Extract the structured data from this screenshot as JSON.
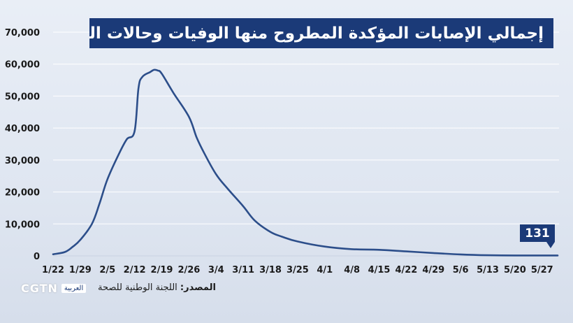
{
  "title": "إجمالي الإصابات المؤكدة المطروح منها الوفيات وحالات الشفاء",
  "end_label": "131",
  "source_label": "المصدر:",
  "source_value": "اللجنة الوطنية للصحة",
  "logo": {
    "text": "CGTN",
    "sub": "العربية"
  },
  "colors": {
    "line": "#2c4e8a",
    "badge": "#1b3a78",
    "grid": "#ffffff"
  },
  "chart_data": {
    "type": "line",
    "title": "إجمالي الإصابات المؤكدة المطروح منها الوفيات وحالات الشفاء",
    "xlabel": "",
    "ylabel": "",
    "ylim": [
      0,
      70000
    ],
    "yticks": [
      0,
      10000,
      20000,
      30000,
      40000,
      50000,
      60000,
      70000
    ],
    "ytick_labels": [
      "0",
      "10,000",
      "20,000",
      "30,000",
      "40,000",
      "50,000",
      "60,000",
      "70,000"
    ],
    "xticks": [
      "1/22",
      "1/29",
      "2/5",
      "2/12",
      "2/19",
      "2/26",
      "3/4",
      "3/11",
      "3/18",
      "3/25",
      "4/1",
      "4/8",
      "4/15",
      "4/22",
      "4/29",
      "5/6",
      "5/13",
      "5/20",
      "5/27"
    ],
    "grid": true,
    "series": [
      {
        "points": [
          [
            "1/22",
            500
          ],
          [
            "1/25",
            1200
          ],
          [
            "1/27",
            2800
          ],
          [
            "1/29",
            5000
          ],
          [
            "2/1",
            10000
          ],
          [
            "2/3",
            16500
          ],
          [
            "2/5",
            24000
          ],
          [
            "2/8",
            32000
          ],
          [
            "2/10",
            36500
          ],
          [
            "2/12",
            39000
          ],
          [
            "2/13",
            52500
          ],
          [
            "2/14",
            56000
          ],
          [
            "2/16",
            57500
          ],
          [
            "2/17",
            58200
          ],
          [
            "2/18",
            58000
          ],
          [
            "2/19",
            57000
          ],
          [
            "2/22",
            51000
          ],
          [
            "2/26",
            43500
          ],
          [
            "2/28",
            37000
          ],
          [
            "3/1",
            32000
          ],
          [
            "3/4",
            25500
          ],
          [
            "3/7",
            21000
          ],
          [
            "3/11",
            15500
          ],
          [
            "3/14",
            11000
          ],
          [
            "3/18",
            7500
          ],
          [
            "3/21",
            6000
          ],
          [
            "3/25",
            4500
          ],
          [
            "4/1",
            2900
          ],
          [
            "4/8",
            2100
          ],
          [
            "4/15",
            1900
          ],
          [
            "4/22",
            1400
          ],
          [
            "4/29",
            900
          ],
          [
            "5/6",
            450
          ],
          [
            "5/13",
            200
          ],
          [
            "5/20",
            140
          ],
          [
            "5/27",
            131
          ],
          [
            "5/31",
            131
          ]
        ]
      }
    ],
    "end_value": 131
  }
}
